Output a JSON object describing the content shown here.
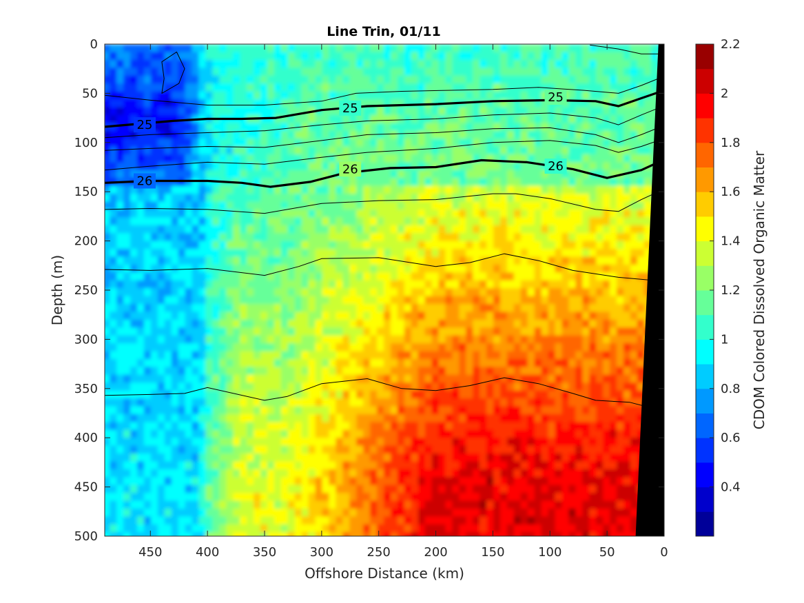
{
  "chart_data": {
    "type": "heatmap",
    "title": "Line Trin, 01/11",
    "xlabel": "Offshore Distance (km)",
    "ylabel": "Depth (m)",
    "colorbar_label": "CDOM Colored Dissolved Organic Matter",
    "xlim": [
      490,
      0
    ],
    "ylim": [
      500,
      0
    ],
    "x_reversed": true,
    "y_reversed": true,
    "x_ticks": [
      450,
      400,
      350,
      300,
      250,
      200,
      150,
      100,
      50,
      0
    ],
    "y_ticks": [
      0,
      50,
      100,
      150,
      200,
      250,
      300,
      350,
      400,
      450,
      500
    ],
    "colorbar": {
      "range": [
        0.2,
        2.2
      ],
      "step": 0.1,
      "ticks": [
        0.4,
        0.6,
        0.8,
        1,
        1.2,
        1.4,
        1.6,
        1.8,
        2,
        2.2
      ],
      "colormap": "jet"
    },
    "field_description": "CDOM roughly 0.5-0.8 in upper offshore layer (x>400 km, depth<150 m), ~1.0-1.2 nearshore upper layer, increasing with depth and toward shore to ~1.6-2.0 below 250 m",
    "contours": [
      {
        "level": "25",
        "emphasized": true,
        "points": [
          [
            490,
            84
          ],
          [
            470,
            82
          ],
          [
            430,
            78
          ],
          [
            400,
            76
          ],
          [
            370,
            76
          ],
          [
            340,
            75
          ],
          [
            300,
            67
          ],
          [
            260,
            63
          ],
          [
            200,
            61
          ],
          [
            150,
            58
          ],
          [
            100,
            57
          ],
          [
            60,
            58
          ],
          [
            40,
            63
          ],
          [
            20,
            55
          ],
          [
            5,
            49
          ]
        ]
      },
      {
        "level": "26",
        "emphasized": true,
        "points": [
          [
            490,
            141
          ],
          [
            450,
            139
          ],
          [
            400,
            139
          ],
          [
            370,
            141
          ],
          [
            345,
            145
          ],
          [
            310,
            140
          ],
          [
            280,
            131
          ],
          [
            240,
            126
          ],
          [
            200,
            125
          ],
          [
            160,
            118
          ],
          [
            120,
            120
          ],
          [
            80,
            127
          ],
          [
            50,
            136
          ],
          [
            20,
            128
          ],
          [
            5,
            120
          ]
        ]
      },
      {
        "level": "",
        "emphasized": false,
        "points": [
          [
            490,
            52
          ],
          [
            450,
            57
          ],
          [
            400,
            62
          ],
          [
            350,
            62
          ],
          [
            300,
            58
          ],
          [
            270,
            50
          ],
          [
            230,
            48
          ],
          [
            190,
            47
          ],
          [
            150,
            46
          ],
          [
            110,
            44
          ],
          [
            70,
            47
          ],
          [
            40,
            50
          ],
          [
            20,
            42
          ],
          [
            5,
            35
          ]
        ]
      },
      {
        "level": "",
        "emphasized": false,
        "points": [
          [
            490,
            95
          ],
          [
            450,
            92
          ],
          [
            400,
            90
          ],
          [
            350,
            88
          ],
          [
            300,
            82
          ],
          [
            260,
            78
          ],
          [
            200,
            76
          ],
          [
            150,
            72
          ],
          [
            100,
            70
          ],
          [
            60,
            75
          ],
          [
            40,
            82
          ],
          [
            20,
            72
          ],
          [
            5,
            65
          ]
        ]
      },
      {
        "level": "",
        "emphasized": false,
        "points": [
          [
            490,
            108
          ],
          [
            450,
            106
          ],
          [
            400,
            104
          ],
          [
            350,
            105
          ],
          [
            300,
            98
          ],
          [
            260,
            92
          ],
          [
            200,
            90
          ],
          [
            150,
            86
          ],
          [
            100,
            85
          ],
          [
            60,
            92
          ],
          [
            40,
            100
          ],
          [
            20,
            92
          ],
          [
            5,
            85
          ]
        ]
      },
      {
        "level": "",
        "emphasized": false,
        "points": [
          [
            490,
            128
          ],
          [
            450,
            124
          ],
          [
            400,
            120
          ],
          [
            350,
            122
          ],
          [
            300,
            115
          ],
          [
            260,
            110
          ],
          [
            200,
            106
          ],
          [
            150,
            100
          ],
          [
            100,
            98
          ],
          [
            60,
            103
          ],
          [
            40,
            110
          ],
          [
            20,
            104
          ],
          [
            5,
            98
          ]
        ]
      },
      {
        "level": "",
        "emphasized": false,
        "points": [
          [
            490,
            168
          ],
          [
            450,
            167
          ],
          [
            400,
            168
          ],
          [
            350,
            172
          ],
          [
            300,
            162
          ],
          [
            250,
            159
          ],
          [
            200,
            158
          ],
          [
            150,
            152
          ],
          [
            130,
            152
          ],
          [
            100,
            157
          ],
          [
            60,
            168
          ],
          [
            40,
            170
          ],
          [
            20,
            158
          ],
          [
            5,
            150
          ]
        ]
      },
      {
        "level": "",
        "emphasized": false,
        "points": [
          [
            490,
            229
          ],
          [
            450,
            230
          ],
          [
            400,
            228
          ],
          [
            350,
            235
          ],
          [
            320,
            226
          ],
          [
            300,
            218
          ],
          [
            250,
            217
          ],
          [
            200,
            226
          ],
          [
            170,
            222
          ],
          [
            140,
            213
          ],
          [
            110,
            220
          ],
          [
            80,
            230
          ],
          [
            40,
            237
          ],
          [
            10,
            240
          ]
        ]
      },
      {
        "level": "",
        "emphasized": false,
        "points": [
          [
            490,
            357
          ],
          [
            450,
            356
          ],
          [
            420,
            355
          ],
          [
            400,
            349
          ],
          [
            350,
            362
          ],
          [
            330,
            358
          ],
          [
            300,
            345
          ],
          [
            260,
            340
          ],
          [
            230,
            350
          ],
          [
            200,
            352
          ],
          [
            170,
            347
          ],
          [
            140,
            339
          ],
          [
            110,
            345
          ],
          [
            80,
            355
          ],
          [
            60,
            362
          ],
          [
            30,
            364
          ],
          [
            10,
            370
          ]
        ]
      },
      {
        "level": "",
        "emphasized": false,
        "points": [
          [
            65,
            1
          ],
          [
            40,
            5
          ],
          [
            20,
            10
          ],
          [
            5,
            10
          ]
        ]
      },
      {
        "level": "",
        "emphasized": false,
        "closed": true,
        "points": [
          [
            440,
            50
          ],
          [
            425,
            40
          ],
          [
            420,
            25
          ],
          [
            427,
            8
          ],
          [
            440,
            18
          ],
          [
            438,
            35
          ]
        ]
      }
    ],
    "contour_labels": [
      {
        "text": "25",
        "x": 455,
        "y": 82
      },
      {
        "text": "25",
        "x": 275,
        "y": 65
      },
      {
        "text": "25",
        "x": 95,
        "y": 54
      },
      {
        "text": "26",
        "x": 455,
        "y": 139
      },
      {
        "text": "26",
        "x": 275,
        "y": 127
      },
      {
        "text": "26",
        "x": 95,
        "y": 124
      }
    ],
    "bathymetry": {
      "color": "#000000",
      "polygon": [
        [
          0,
          0
        ],
        [
          5,
          0
        ],
        [
          25,
          500
        ],
        [
          0,
          500
        ]
      ]
    }
  }
}
